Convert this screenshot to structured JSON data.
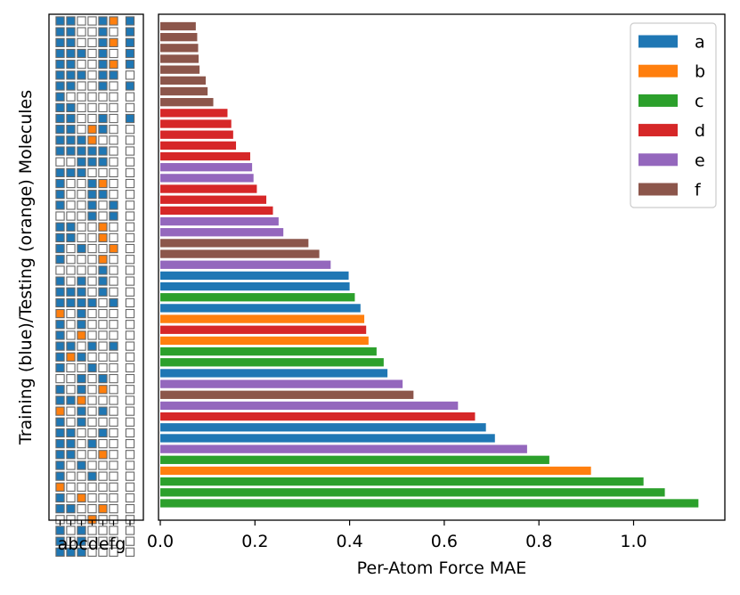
{
  "colors": {
    "a": "#1f77b4",
    "b": "#ff7f0e",
    "c": "#2ca02c",
    "d": "#d62728",
    "e": "#9467bd",
    "f": "#8c564b",
    "train": "#1f77b4",
    "test": "#ff7f0e",
    "unused": "#ffffff"
  },
  "chart_data": [
    {
      "type": "heatmap",
      "ylabel": "Training (blue)/Testing (orange) Molecules",
      "columns": [
        "a",
        "b",
        "c",
        "d",
        "e",
        "f",
        "g"
      ],
      "column_tick_labels_text": "abcdefg",
      "legend_text": "Training (blue)/Testing (orange)",
      "cell_codes": [
        "train",
        "test",
        "unused"
      ],
      "rows": [
        [
          "train",
          "train",
          "unused",
          "unused",
          "train",
          "test",
          "train"
        ],
        [
          "train",
          "train",
          "unused",
          "unused",
          "train",
          "unused",
          "train"
        ],
        [
          "train",
          "train",
          "unused",
          "unused",
          "train",
          "test",
          "train"
        ],
        [
          "train",
          "train",
          "train",
          "unused",
          "train",
          "unused",
          "train"
        ],
        [
          "train",
          "train",
          "unused",
          "unused",
          "train",
          "test",
          "train"
        ],
        [
          "train",
          "train",
          "train",
          "unused",
          "train",
          "train",
          "unused"
        ],
        [
          "train",
          "train",
          "unused",
          "unused",
          "train",
          "unused",
          "train"
        ],
        [
          "train",
          "unused",
          "unused",
          "unused",
          "unused",
          "unused",
          "unused"
        ],
        [
          "train",
          "train",
          "unused",
          "unused",
          "unused",
          "unused",
          "unused"
        ],
        [
          "train",
          "train",
          "unused",
          "unused",
          "train",
          "unused",
          "train"
        ],
        [
          "train",
          "train",
          "unused",
          "test",
          "train",
          "unused",
          "unused"
        ],
        [
          "train",
          "train",
          "train",
          "test",
          "unused",
          "unused",
          "unused"
        ],
        [
          "train",
          "train",
          "train",
          "train",
          "train",
          "unused",
          "unused"
        ],
        [
          "unused",
          "unused",
          "train",
          "train",
          "train",
          "unused",
          "unused"
        ],
        [
          "train",
          "train",
          "train",
          "unused",
          "unused",
          "unused",
          "unused"
        ],
        [
          "train",
          "unused",
          "unused",
          "train",
          "test",
          "unused",
          "unused"
        ],
        [
          "train",
          "unused",
          "unused",
          "train",
          "train",
          "unused",
          "unused"
        ],
        [
          "train",
          "unused",
          "unused",
          "train",
          "unused",
          "train",
          "unused"
        ],
        [
          "unused",
          "unused",
          "unused",
          "train",
          "unused",
          "train",
          "unused"
        ],
        [
          "train",
          "train",
          "unused",
          "unused",
          "test",
          "unused",
          "unused"
        ],
        [
          "train",
          "train",
          "unused",
          "unused",
          "test",
          "unused",
          "unused"
        ],
        [
          "train",
          "unused",
          "train",
          "unused",
          "unused",
          "test",
          "unused"
        ],
        [
          "train",
          "unused",
          "unused",
          "unused",
          "test",
          "unused",
          "unused"
        ],
        [
          "unused",
          "unused",
          "unused",
          "unused",
          "train",
          "unused",
          "unused"
        ],
        [
          "train",
          "unused",
          "train",
          "unused",
          "train",
          "unused",
          "unused"
        ],
        [
          "train",
          "train",
          "train",
          "unused",
          "train",
          "unused",
          "unused"
        ],
        [
          "train",
          "train",
          "train",
          "train",
          "unused",
          "train",
          "unused"
        ],
        [
          "test",
          "unused",
          "train",
          "unused",
          "unused",
          "unused",
          "unused"
        ],
        [
          "train",
          "unused",
          "train",
          "unused",
          "unused",
          "unused",
          "unused"
        ],
        [
          "train",
          "unused",
          "test",
          "unused",
          "unused",
          "unused",
          "unused"
        ],
        [
          "train",
          "train",
          "unused",
          "train",
          "unused",
          "train",
          "unused"
        ],
        [
          "train",
          "test",
          "train",
          "unused",
          "unused",
          "unused",
          "unused"
        ],
        [
          "train",
          "unused",
          "unused",
          "train",
          "unused",
          "unused",
          "unused"
        ],
        [
          "unused",
          "unused",
          "train",
          "unused",
          "train",
          "unused",
          "unused"
        ],
        [
          "train",
          "unused",
          "train",
          "unused",
          "test",
          "unused",
          "unused"
        ],
        [
          "train",
          "train",
          "test",
          "unused",
          "unused",
          "unused",
          "unused"
        ],
        [
          "test",
          "unused",
          "train",
          "unused",
          "train",
          "unused",
          "unused"
        ],
        [
          "train",
          "unused",
          "train",
          "unused",
          "unused",
          "unused",
          "unused"
        ],
        [
          "train",
          "train",
          "unused",
          "unused",
          "train",
          "unused",
          "unused"
        ],
        [
          "train",
          "train",
          "unused",
          "train",
          "unused",
          "unused",
          "unused"
        ],
        [
          "train",
          "train",
          "unused",
          "unused",
          "test",
          "unused",
          "unused"
        ],
        [
          "train",
          "unused",
          "train",
          "unused",
          "unused",
          "unused",
          "unused"
        ],
        [
          "train",
          "unused",
          "unused",
          "train",
          "unused",
          "unused",
          "unused"
        ],
        [
          "test",
          "unused",
          "unused",
          "unused",
          "unused",
          "unused",
          "unused"
        ],
        [
          "train",
          "unused",
          "test",
          "unused",
          "unused",
          "unused",
          "unused"
        ],
        [
          "train",
          "train",
          "unused",
          "unused",
          "test",
          "unused",
          "unused"
        ],
        [
          "unused",
          "unused",
          "unused",
          "test",
          "unused",
          "unused",
          "unused"
        ],
        [
          "train",
          "unused",
          "train",
          "unused",
          "unused",
          "unused",
          "unused"
        ],
        [
          "train",
          "unused",
          "train",
          "unused",
          "unused",
          "unused",
          "unused"
        ],
        [
          "train",
          "train",
          "train",
          "unused",
          "unused",
          "unused",
          "unused"
        ]
      ]
    },
    {
      "type": "bar",
      "orientation": "horizontal",
      "xlabel": "Per-Atom Force MAE",
      "xlim": [
        0,
        1.2
      ],
      "xticks": [
        "0.0",
        "0.2",
        "0.4",
        "0.6",
        "0.8",
        "1.0"
      ],
      "legend_position": "top-right",
      "legend": [
        "a",
        "b",
        "c",
        "d",
        "e",
        "f"
      ],
      "bars_top_to_bottom": [
        {
          "group": "f",
          "value": 0.075
        },
        {
          "group": "f",
          "value": 0.078
        },
        {
          "group": "f",
          "value": 0.08
        },
        {
          "group": "f",
          "value": 0.081
        },
        {
          "group": "f",
          "value": 0.083
        },
        {
          "group": "f",
          "value": 0.096
        },
        {
          "group": "f",
          "value": 0.1
        },
        {
          "group": "f",
          "value": 0.112
        },
        {
          "group": "d",
          "value": 0.142
        },
        {
          "group": "d",
          "value": 0.15
        },
        {
          "group": "d",
          "value": 0.154
        },
        {
          "group": "d",
          "value": 0.16
        },
        {
          "group": "d",
          "value": 0.19
        },
        {
          "group": "e",
          "value": 0.194
        },
        {
          "group": "e",
          "value": 0.197
        },
        {
          "group": "d",
          "value": 0.204
        },
        {
          "group": "d",
          "value": 0.224
        },
        {
          "group": "d",
          "value": 0.238
        },
        {
          "group": "e",
          "value": 0.25
        },
        {
          "group": "e",
          "value": 0.26
        },
        {
          "group": "f",
          "value": 0.313
        },
        {
          "group": "f",
          "value": 0.336
        },
        {
          "group": "e",
          "value": 0.36
        },
        {
          "group": "a",
          "value": 0.398
        },
        {
          "group": "a",
          "value": 0.4
        },
        {
          "group": "c",
          "value": 0.411
        },
        {
          "group": "a",
          "value": 0.423
        },
        {
          "group": "b",
          "value": 0.431
        },
        {
          "group": "d",
          "value": 0.435
        },
        {
          "group": "b",
          "value": 0.44
        },
        {
          "group": "c",
          "value": 0.457
        },
        {
          "group": "c",
          "value": 0.472
        },
        {
          "group": "a",
          "value": 0.48
        },
        {
          "group": "e",
          "value": 0.512
        },
        {
          "group": "f",
          "value": 0.535
        },
        {
          "group": "e",
          "value": 0.629
        },
        {
          "group": "d",
          "value": 0.665
        },
        {
          "group": "a",
          "value": 0.688
        },
        {
          "group": "a",
          "value": 0.707
        },
        {
          "group": "e",
          "value": 0.775
        },
        {
          "group": "c",
          "value": 0.822
        },
        {
          "group": "b",
          "value": 0.91
        },
        {
          "group": "c",
          "value": 1.021
        },
        {
          "group": "c",
          "value": 1.066
        },
        {
          "group": "c",
          "value": 1.137
        }
      ]
    }
  ]
}
